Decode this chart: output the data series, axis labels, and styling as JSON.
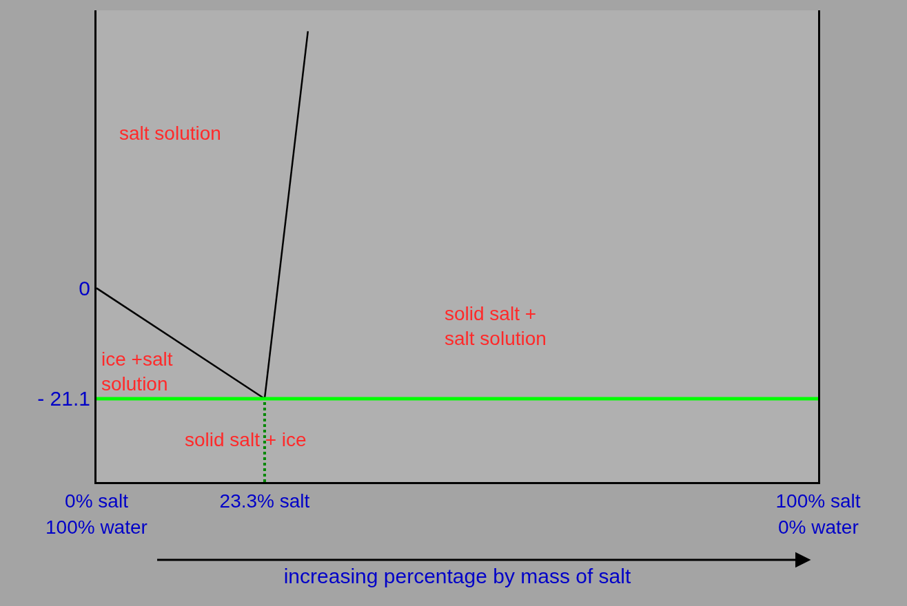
{
  "chart_data": {
    "type": "line",
    "xlabel": "increasing percentage by mass of salt",
    "xlim": [
      0,
      100
    ],
    "xticks": [
      {
        "value": 0,
        "label": "0% salt"
      },
      {
        "value": 23.3,
        "label": "23.3% salt"
      },
      {
        "value": 100,
        "label": "100% salt"
      }
    ],
    "ylim": [
      -37,
      53
    ],
    "yticks": [
      0,
      {
        "value": -21.1,
        "label": "- 21.1"
      }
    ],
    "grid": false,
    "marker": "none",
    "series": [
      {
        "color": "#000000",
        "x": [
          0,
          23.3
        ],
        "values": [
          0,
          -21.1
        ],
        "line_style": "solid"
      },
      {
        "color": "#000000",
        "x": [
          23.3,
          29.3
        ],
        "values": [
          -21.1,
          49
        ],
        "line_style": "solid"
      },
      {
        "color": "#008800",
        "x": [
          23.3,
          23.3
        ],
        "values": [
          -37,
          -21.1
        ],
        "line_style": "dotted"
      }
    ],
    "ref_lines": [
      {
        "axis": "y",
        "value": -21.1,
        "color": "#00ff00",
        "line_style": "solid"
      }
    ],
    "annotations": [
      "salt solution",
      "solid salt +\nsalt solution",
      "ice +salt\nsolution",
      "solid salt + ice",
      "100% water",
      "0% water"
    ]
  }
}
